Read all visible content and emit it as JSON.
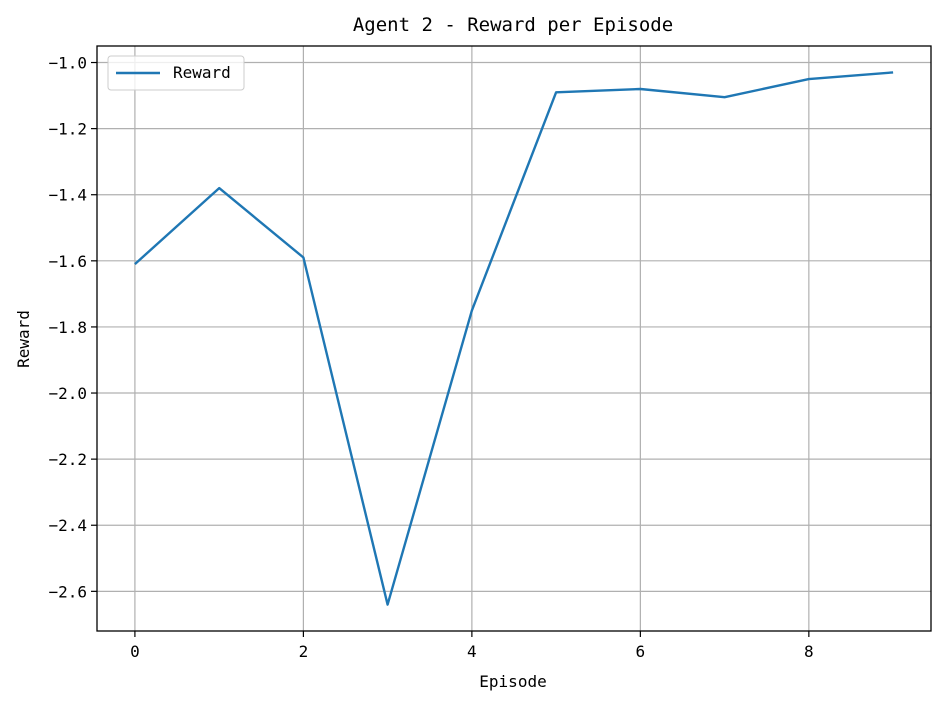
{
  "chart_data": {
    "type": "line",
    "title": "Agent 2 - Reward per Episode",
    "xlabel": "Episode",
    "ylabel": "Reward",
    "xlim": [
      -0.45,
      9.45
    ],
    "ylim": [
      -2.72,
      -0.95
    ],
    "xticks": [
      0,
      2,
      4,
      6,
      8
    ],
    "xtick_labels": [
      "0",
      "2",
      "4",
      "6",
      "8"
    ],
    "yticks": [
      -1.0,
      -1.2,
      -1.4,
      -1.6,
      -1.8,
      -2.0,
      -2.2,
      -2.4,
      -2.6
    ],
    "ytick_labels": [
      "−1.0",
      "−1.2",
      "−1.4",
      "−1.6",
      "−1.8",
      "−2.0",
      "−2.2",
      "−2.4",
      "−2.6"
    ],
    "grid": true,
    "legend": {
      "placement": "top-left"
    },
    "series": [
      {
        "name": "Reward",
        "color": "#1f77b4",
        "x": [
          0,
          1,
          2,
          3,
          4,
          5,
          6,
          7,
          8,
          9
        ],
        "y": [
          -1.61,
          -1.38,
          -1.59,
          -2.64,
          -1.75,
          -1.09,
          -1.08,
          -1.105,
          -1.05,
          -1.03
        ]
      }
    ]
  }
}
